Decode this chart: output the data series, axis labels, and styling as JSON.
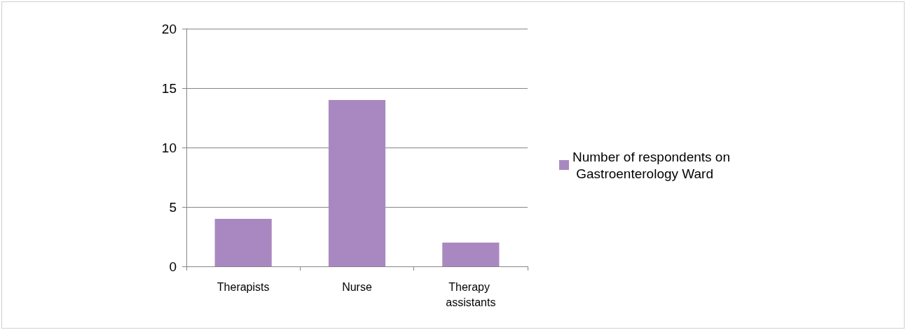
{
  "chart_data": {
    "type": "bar",
    "categories": [
      "Therapists",
      "Nurse",
      "Therapy assistants"
    ],
    "series": [
      {
        "name": "Number of respondents on Gastroenterology Ward",
        "color": "#a988c1",
        "values": [
          4,
          14,
          2
        ]
      }
    ],
    "ylim": [
      0,
      20
    ],
    "yticks": [
      0,
      5,
      10,
      15,
      20
    ],
    "grid": "y",
    "legend": "right"
  }
}
